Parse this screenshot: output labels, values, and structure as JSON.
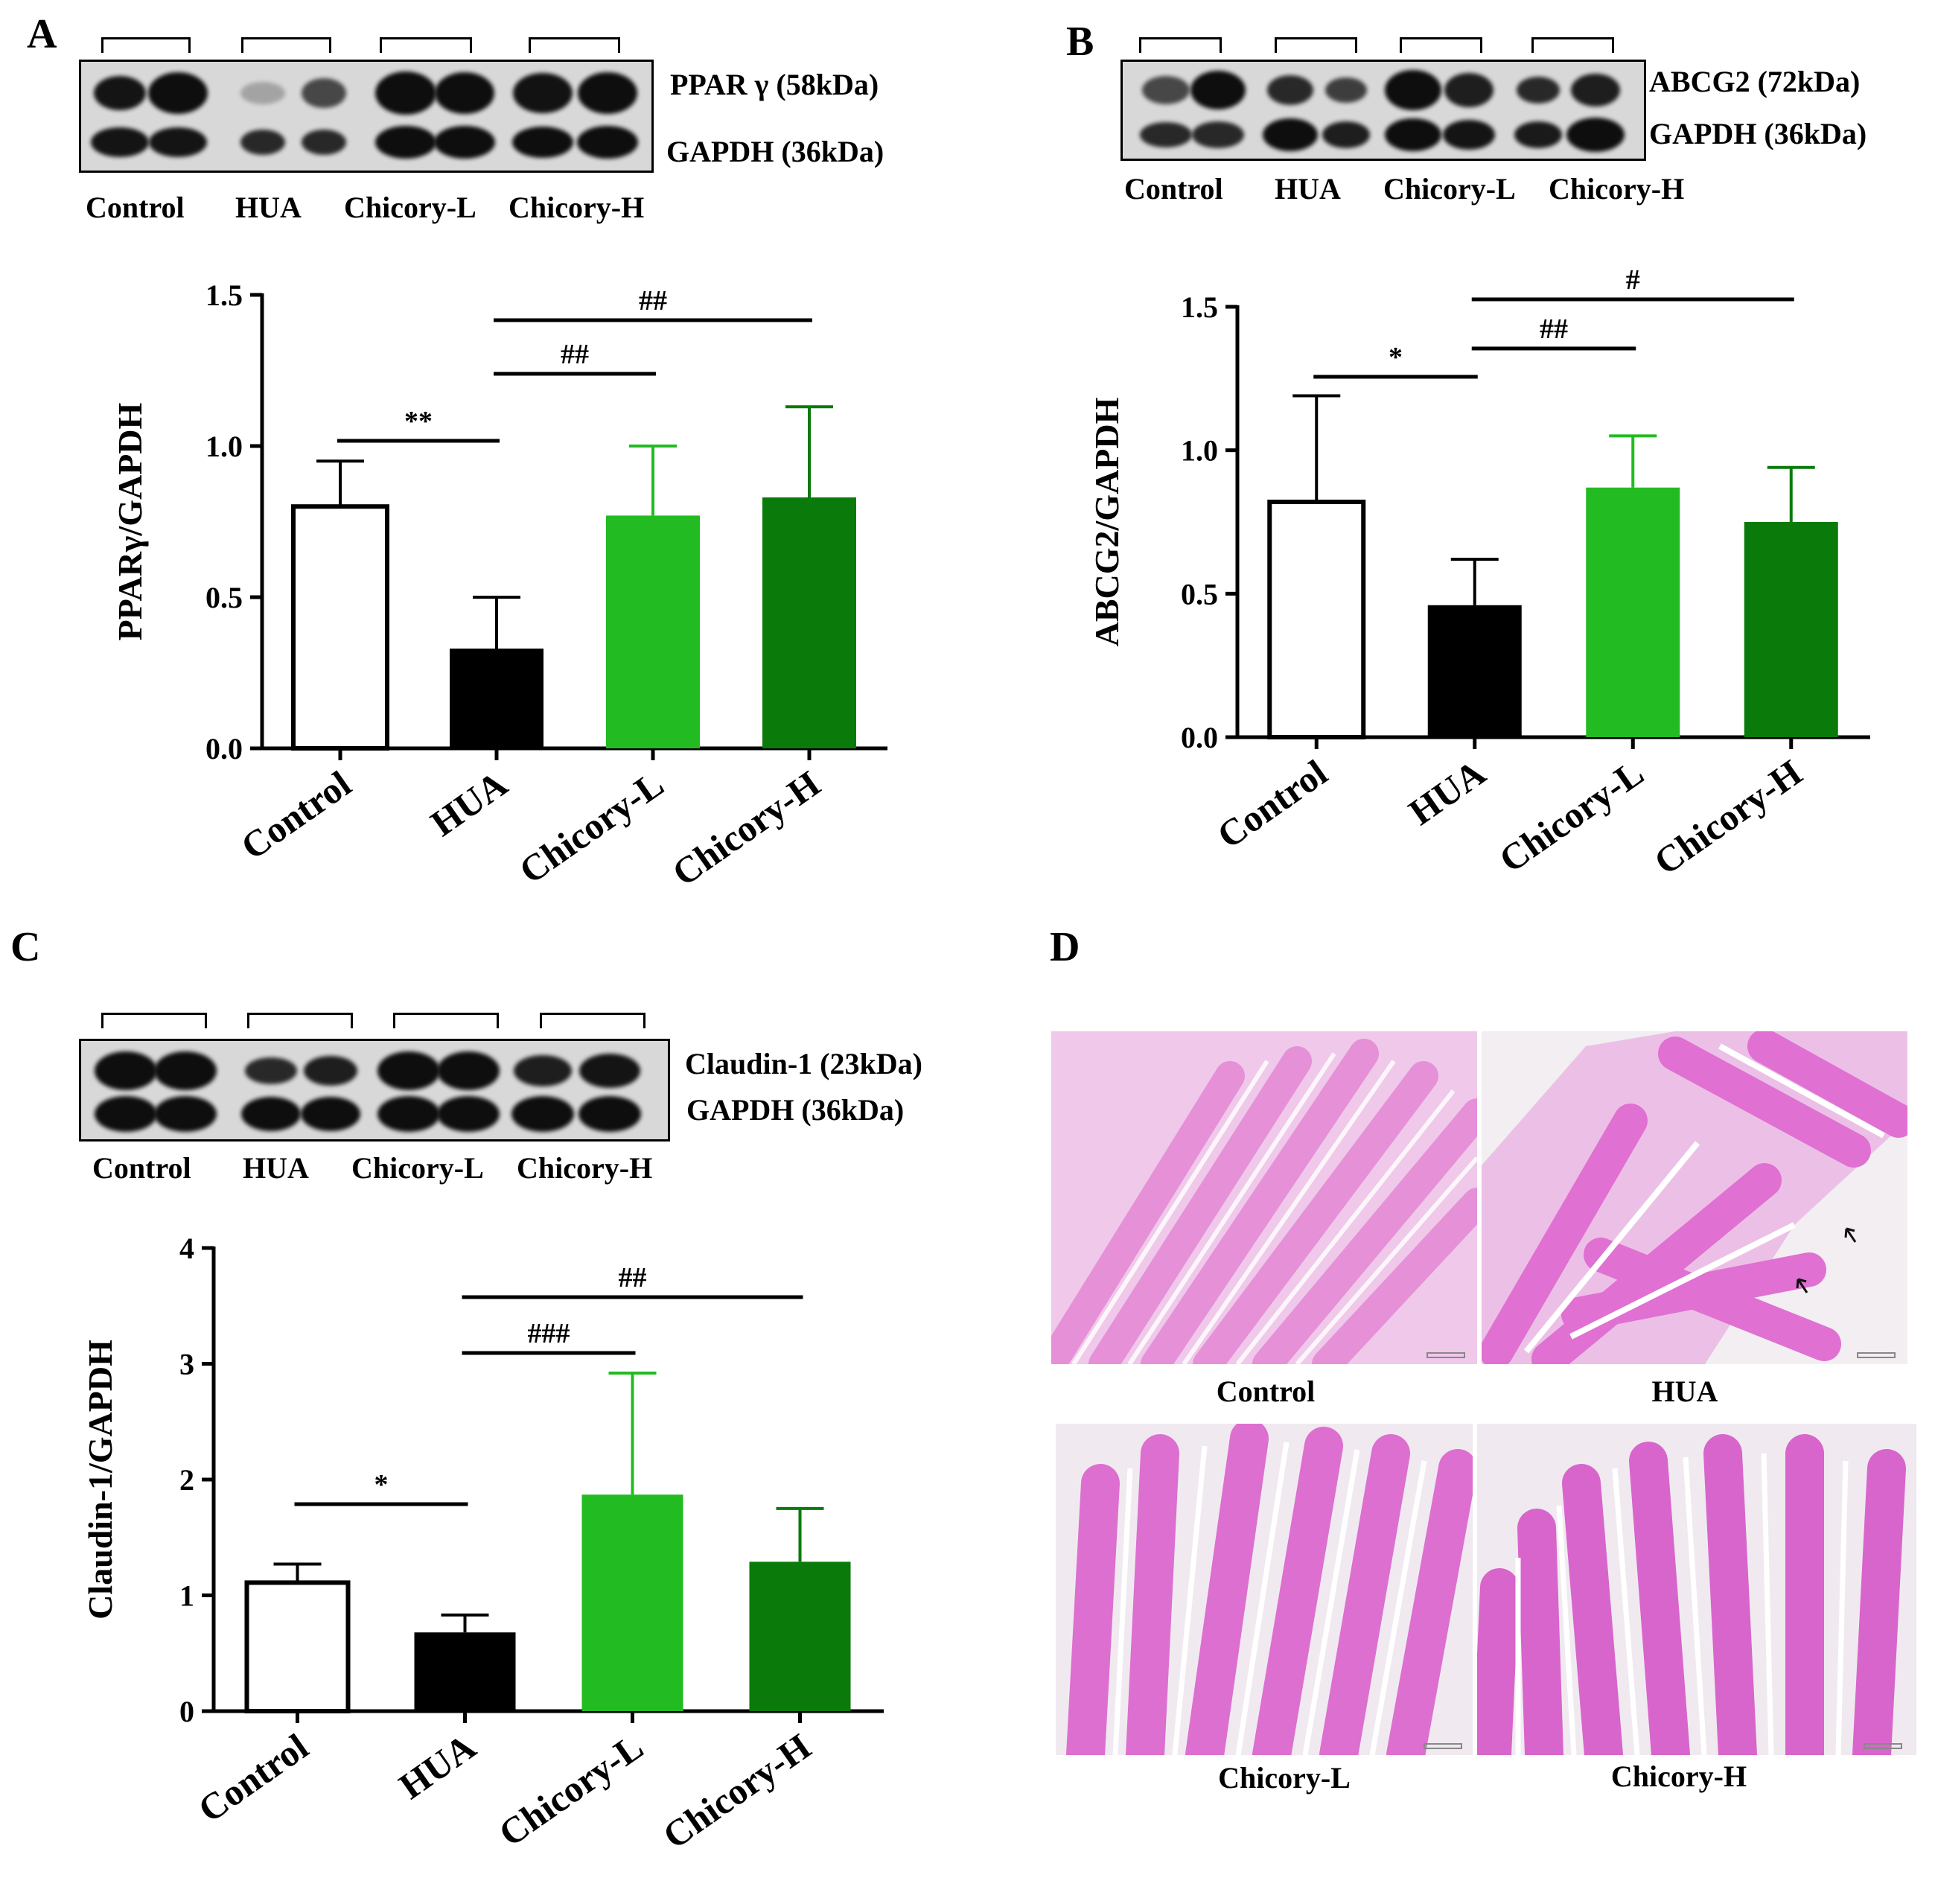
{
  "panels": {
    "A": {
      "letter": "A",
      "blot": {
        "labels": [
          "PPAR γ (58kDa)",
          "GAPDH (36kDa)"
        ],
        "lanes": [
          "Control",
          "HUA",
          "Chicory-L",
          "Chicory-H"
        ]
      }
    },
    "B": {
      "letter": "B",
      "blot": {
        "labels": [
          "ABCG2 (72kDa)",
          "GAPDH (36kDa)"
        ],
        "lanes": [
          "Control",
          "HUA",
          "Chicory-L",
          "Chicory-H"
        ]
      }
    },
    "C": {
      "letter": "C",
      "blot": {
        "labels": [
          "Claudin-1 (23kDa)",
          "GAPDH (36kDa)"
        ],
        "lanes": [
          "Control",
          "HUA",
          "Chicory-L",
          "Chicory-H"
        ]
      }
    },
    "D": {
      "letter": "D",
      "images": [
        "Control",
        "HUA",
        "Chicory-L",
        "Chicory-H"
      ]
    }
  },
  "colors": {
    "control": "#ffffff",
    "hua": "#000000",
    "chicory_l": "#22bb22",
    "chicory_h": "#0a7a0a",
    "tissue_pink": "#e58ad6",
    "tissue_dark": "#b43fb0"
  },
  "chart_data": [
    {
      "panel": "A",
      "type": "bar",
      "categories": [
        "Control",
        "HUA",
        "Chicory-L",
        "Chicory-H"
      ],
      "values": [
        0.8,
        0.33,
        0.77,
        0.83
      ],
      "errors": [
        0.15,
        0.17,
        0.23,
        0.3
      ],
      "ylabel": "PPARγ/GAPDH",
      "ylim": [
        0,
        1.5
      ],
      "yticks": [
        "0.0",
        "0.5",
        "1.0",
        "1.5"
      ],
      "significance": [
        {
          "from": 0,
          "to": 1,
          "label": "**"
        },
        {
          "from": 1,
          "to": 2,
          "label": "##"
        },
        {
          "from": 1,
          "to": 3,
          "label": "##"
        }
      ]
    },
    {
      "panel": "B",
      "type": "bar",
      "categories": [
        "Control",
        "HUA",
        "Chicory-L",
        "Chicory-H"
      ],
      "values": [
        0.82,
        0.46,
        0.87,
        0.75
      ],
      "errors": [
        0.37,
        0.16,
        0.18,
        0.19
      ],
      "ylabel": "ABCG2/GAPDH",
      "ylim": [
        0,
        1.5
      ],
      "yticks": [
        "0.0",
        "0.5",
        "1.0",
        "1.5"
      ],
      "significance": [
        {
          "from": 0,
          "to": 1,
          "label": "*"
        },
        {
          "from": 1,
          "to": 2,
          "label": "##"
        },
        {
          "from": 1,
          "to": 3,
          "label": "#"
        }
      ]
    },
    {
      "panel": "C",
      "type": "bar",
      "categories": [
        "Control",
        "HUA",
        "Chicory-L",
        "Chicory-H"
      ],
      "values": [
        1.11,
        0.68,
        1.87,
        1.29
      ],
      "errors": [
        0.16,
        0.15,
        1.05,
        0.46
      ],
      "ylabel": "Claudin-1/GAPDH",
      "ylim": [
        0,
        4
      ],
      "yticks": [
        "0",
        "1",
        "2",
        "3",
        "4"
      ],
      "significance": [
        {
          "from": 0,
          "to": 1,
          "label": "*"
        },
        {
          "from": 1,
          "to": 2,
          "label": "###"
        },
        {
          "from": 1,
          "to": 3,
          "label": "##"
        }
      ]
    }
  ]
}
